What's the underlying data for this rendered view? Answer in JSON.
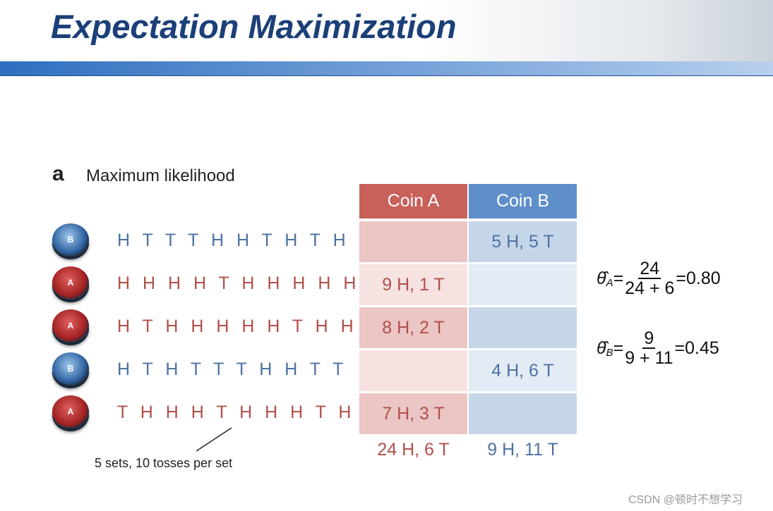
{
  "header": {
    "title": "Expectation Maximization"
  },
  "section": {
    "letter": "a",
    "title": "Maximum likelihood"
  },
  "table": {
    "headers": [
      "Coin A",
      "Coin B"
    ],
    "rows": [
      {
        "coin": "B",
        "tosses": "H T T T H H T H T H",
        "coin_a": null,
        "coin_b": "5 H, 5 T"
      },
      {
        "coin": "A",
        "tosses": "H H H H T H H H H H",
        "coin_a": "9 H, 1 T",
        "coin_b": null
      },
      {
        "coin": "A",
        "tosses": "H T H H H H H T H H",
        "coin_a": "8 H, 2 T",
        "coin_b": null
      },
      {
        "coin": "B",
        "tosses": "H T H T T T H H T T",
        "coin_a": null,
        "coin_b": "4 H, 6 T"
      },
      {
        "coin": "A",
        "tosses": "T H H H T H H H T H",
        "coin_a": "7 H, 3 T",
        "coin_b": null
      }
    ],
    "totals": [
      "24 H, 6 T",
      "9 H, 11 T"
    ]
  },
  "annotation": "5 sets, 10 tosses per set",
  "formulas": [
    {
      "symbol": "θ̂",
      "subscript": "A",
      "equals": "=",
      "numerator": "24",
      "denominator": "24 + 6",
      "result": "=0.80"
    },
    {
      "symbol": "θ̂",
      "subscript": "B",
      "equals": "=",
      "numerator": "9",
      "denominator": "9 + 11",
      "result": "=0.45"
    }
  ],
  "watermark": "CSDN @顿时不想学习"
}
